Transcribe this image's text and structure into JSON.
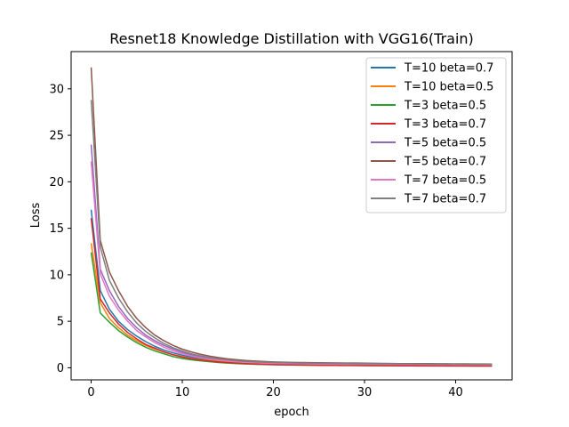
{
  "chart_data": {
    "type": "line",
    "title": "Resnet18 Knowledge Distillation with VGG16(Train)",
    "xlabel": "epoch",
    "ylabel": "Loss",
    "xlim": [
      -2.2,
      46.2
    ],
    "ylim": [
      -1.3,
      34.0
    ],
    "xticks": [
      0,
      10,
      20,
      30,
      40
    ],
    "yticks": [
      0,
      5,
      10,
      15,
      20,
      25,
      30
    ],
    "grid": false,
    "legend_position": "top-right",
    "x": [
      0,
      1,
      2,
      3,
      4,
      5,
      6,
      7,
      8,
      9,
      10,
      11,
      12,
      13,
      14,
      15,
      16,
      17,
      18,
      19,
      20,
      21,
      22,
      23,
      24,
      25,
      26,
      27,
      28,
      29,
      30,
      31,
      32,
      33,
      34,
      35,
      36,
      37,
      38,
      39,
      40,
      41,
      42,
      43,
      44
    ],
    "series": [
      {
        "name": "T=10 beta=0.7",
        "color": "#1f77b4",
        "values": [
          17.0,
          8.3,
          6.3,
          5.0,
          4.1,
          3.4,
          2.8,
          2.3,
          1.9,
          1.6,
          1.35,
          1.15,
          1.0,
          0.88,
          0.78,
          0.7,
          0.63,
          0.58,
          0.54,
          0.51,
          0.49,
          0.47,
          0.45,
          0.44,
          0.43,
          0.42,
          0.41,
          0.4,
          0.39,
          0.38,
          0.37,
          0.36,
          0.35,
          0.35,
          0.34,
          0.34,
          0.33,
          0.33,
          0.32,
          0.32,
          0.31,
          0.31,
          0.3,
          0.3,
          0.3
        ]
      },
      {
        "name": "T=10 beta=0.5",
        "color": "#ff7f0e",
        "values": [
          13.4,
          7.0,
          5.3,
          4.3,
          3.5,
          2.9,
          2.4,
          2.0,
          1.7,
          1.4,
          1.2,
          1.0,
          0.88,
          0.78,
          0.69,
          0.62,
          0.56,
          0.51,
          0.47,
          0.44,
          0.42,
          0.4,
          0.38,
          0.37,
          0.36,
          0.35,
          0.34,
          0.33,
          0.32,
          0.31,
          0.3,
          0.3,
          0.29,
          0.29,
          0.28,
          0.28,
          0.27,
          0.27,
          0.26,
          0.26,
          0.25,
          0.25,
          0.25,
          0.24,
          0.24
        ]
      },
      {
        "name": "T=3 beta=0.5",
        "color": "#2ca02c",
        "values": [
          12.4,
          5.9,
          4.9,
          4.0,
          3.3,
          2.7,
          2.2,
          1.8,
          1.5,
          1.2,
          1.0,
          0.85,
          0.74,
          0.65,
          0.57,
          0.5,
          0.45,
          0.41,
          0.38,
          0.35,
          0.33,
          0.31,
          0.3,
          0.29,
          0.28,
          0.27,
          0.26,
          0.25,
          0.25,
          0.24,
          0.24,
          0.23,
          0.23,
          0.22,
          0.22,
          0.22,
          0.21,
          0.21,
          0.21,
          0.2,
          0.2,
          0.2,
          0.2,
          0.19,
          0.19
        ]
      },
      {
        "name": "T=3 beta=0.7",
        "color": "#d62728",
        "values": [
          16.1,
          7.4,
          5.9,
          4.7,
          3.8,
          3.1,
          2.5,
          2.1,
          1.7,
          1.4,
          1.15,
          0.97,
          0.83,
          0.72,
          0.63,
          0.55,
          0.49,
          0.44,
          0.4,
          0.37,
          0.34,
          0.32,
          0.3,
          0.29,
          0.28,
          0.27,
          0.26,
          0.25,
          0.24,
          0.24,
          0.23,
          0.23,
          0.22,
          0.22,
          0.21,
          0.21,
          0.2,
          0.2,
          0.2,
          0.19,
          0.19,
          0.19,
          0.18,
          0.18,
          0.18
        ]
      },
      {
        "name": "T=5 beta=0.5",
        "color": "#9467bd",
        "values": [
          24.0,
          10.6,
          8.3,
          6.6,
          5.3,
          4.3,
          3.5,
          2.9,
          2.4,
          2.0,
          1.65,
          1.38,
          1.17,
          1.0,
          0.87,
          0.77,
          0.69,
          0.63,
          0.58,
          0.54,
          0.51,
          0.49,
          0.47,
          0.46,
          0.45,
          0.44,
          0.43,
          0.42,
          0.41,
          0.41,
          0.4,
          0.4,
          0.39,
          0.39,
          0.38,
          0.38,
          0.38,
          0.37,
          0.37,
          0.37,
          0.36,
          0.36,
          0.36,
          0.36,
          0.35
        ]
      },
      {
        "name": "T=5 beta=0.7",
        "color": "#8c564b",
        "values": [
          32.3,
          13.7,
          10.3,
          8.3,
          6.6,
          5.3,
          4.3,
          3.5,
          2.9,
          2.4,
          2.0,
          1.7,
          1.45,
          1.25,
          1.09,
          0.96,
          0.86,
          0.78,
          0.72,
          0.67,
          0.63,
          0.6,
          0.58,
          0.56,
          0.55,
          0.54,
          0.53,
          0.52,
          0.51,
          0.5,
          0.49,
          0.48,
          0.47,
          0.46,
          0.45,
          0.45,
          0.44,
          0.44,
          0.43,
          0.43,
          0.42,
          0.42,
          0.41,
          0.41,
          0.4
        ]
      },
      {
        "name": "T=7 beta=0.5",
        "color": "#e377c2",
        "values": [
          22.2,
          10.1,
          7.7,
          6.2,
          5.0,
          4.0,
          3.3,
          2.7,
          2.2,
          1.8,
          1.5,
          1.27,
          1.08,
          0.93,
          0.82,
          0.72,
          0.65,
          0.59,
          0.55,
          0.51,
          0.48,
          0.46,
          0.44,
          0.43,
          0.42,
          0.41,
          0.4,
          0.39,
          0.38,
          0.38,
          0.37,
          0.37,
          0.36,
          0.36,
          0.35,
          0.35,
          0.35,
          0.34,
          0.34,
          0.34,
          0.33,
          0.33,
          0.33,
          0.33,
          0.32
        ]
      },
      {
        "name": "T=7 beta=0.7",
        "color": "#7f7f7f",
        "values": [
          28.8,
          13.0,
          9.4,
          7.5,
          6.0,
          4.8,
          3.9,
          3.2,
          2.6,
          2.15,
          1.8,
          1.5,
          1.28,
          1.1,
          0.96,
          0.85,
          0.76,
          0.69,
          0.64,
          0.6,
          0.57,
          0.55,
          0.53,
          0.51,
          0.5,
          0.49,
          0.48,
          0.47,
          0.46,
          0.45,
          0.45,
          0.44,
          0.43,
          0.43,
          0.42,
          0.42,
          0.41,
          0.41,
          0.4,
          0.4,
          0.4,
          0.39,
          0.39,
          0.39,
          0.38
        ]
      }
    ]
  }
}
